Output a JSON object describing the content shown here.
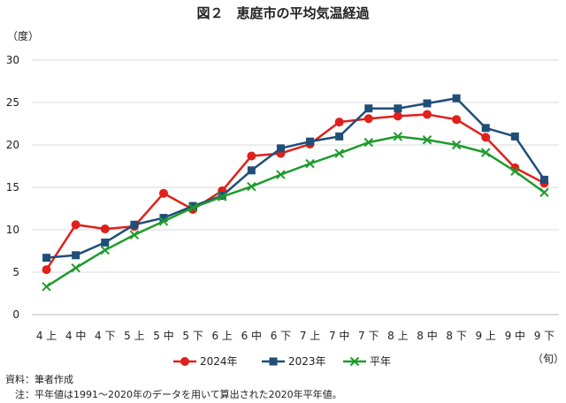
{
  "chart_data": {
    "type": "line",
    "title": "図２　恵庭市の平均気温経過",
    "ylabel": "（度）",
    "xlabel": "（旬）",
    "ylim": [
      0,
      30
    ],
    "yticks": [
      0,
      5,
      10,
      15,
      20,
      25,
      30
    ],
    "grid": true,
    "legend": "bottom",
    "categories": [
      "4上",
      "4中",
      "4下",
      "5上",
      "5中",
      "5下",
      "6上",
      "6中",
      "6下",
      "7上",
      "7中",
      "7下",
      "8上",
      "8中",
      "8下",
      "9上",
      "9中",
      "9下"
    ],
    "series": [
      {
        "name": "2024年",
        "color": "#e0201b",
        "marker": "circle",
        "values": [
          5.3,
          10.6,
          10.1,
          10.4,
          14.3,
          12.4,
          14.6,
          18.7,
          19.0,
          20.1,
          22.7,
          23.1,
          23.4,
          23.6,
          23.0,
          20.9,
          17.3,
          15.5
        ]
      },
      {
        "name": "2023年",
        "color": "#1f4e79",
        "marker": "square",
        "values": [
          6.7,
          7.0,
          8.5,
          10.6,
          11.4,
          12.8,
          14.0,
          17.0,
          19.6,
          20.4,
          21.0,
          24.3,
          24.3,
          24.9,
          25.5,
          22.0,
          21.0,
          15.9
        ]
      },
      {
        "name": "平年",
        "color": "#1e9b2c",
        "marker": "cross",
        "values": [
          3.3,
          5.5,
          7.6,
          9.4,
          11.0,
          12.6,
          13.9,
          15.1,
          16.5,
          17.8,
          19.0,
          20.3,
          21.0,
          20.6,
          20.0,
          19.1,
          16.9,
          14.4
        ]
      }
    ]
  },
  "notes": {
    "source": "資料：筆者作成",
    "note": "　注：平年値は1991～2020年のデータを用いて算出された2020年平年値。"
  }
}
